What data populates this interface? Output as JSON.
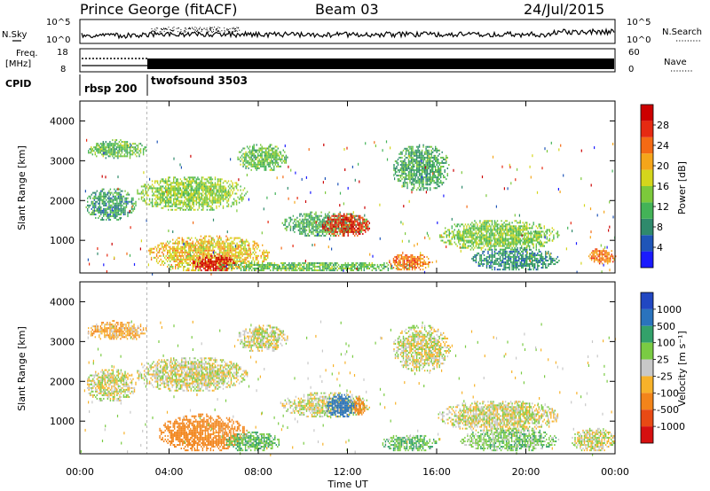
{
  "header": {
    "station": "Prince George (fitACF)",
    "beam": "Beam 03",
    "date": "24/Jul/2015"
  },
  "labels": {
    "nsky": "N.Sky",
    "nsearch": "N.Search",
    "freq": "Freq.",
    "mhz": "[MHz]",
    "nave": "Nave",
    "cpid": "CPID",
    "slant_range": "Slant Range [km]",
    "time_axis": "Time UT",
    "power_bar": "Power [dB]",
    "velocity_bar": "Velocity [m s⁻¹]"
  },
  "noise_axis": {
    "ticks": [
      "10^5",
      "10^0"
    ]
  },
  "freq_axis": {
    "left_ticks": [
      "18",
      "8"
    ],
    "right_ticks": [
      "60",
      "0"
    ]
  },
  "cpid_segments": [
    {
      "label": "rbsp 200",
      "start_hour": 0.0,
      "end_hour": 3.0
    },
    {
      "label": "twofsound 3503",
      "start_hour": 3.0,
      "end_hour": 24.0
    }
  ],
  "time_ticks": [
    "00:00",
    "04:00",
    "08:00",
    "12:00",
    "16:00",
    "20:00",
    "00:00"
  ],
  "range_ticks": [
    "1000",
    "2000",
    "3000",
    "4000"
  ],
  "power_scale": {
    "labels": [
      "4",
      "8",
      "12",
      "16",
      "20",
      "24",
      "28"
    ],
    "colors": [
      "#1a1aff",
      "#1f55b8",
      "#2f8a6c",
      "#43b357",
      "#7cc93b",
      "#d4d61c",
      "#f5a51a",
      "#f46a14",
      "#e62a12",
      "#cc0000"
    ]
  },
  "velocity_scale": {
    "labels": [
      "1000",
      "500",
      "100",
      "25",
      "-25",
      "-100",
      "-500",
      "-1000"
    ],
    "colors": [
      "#2147c2",
      "#2a73bd",
      "#33a16a",
      "#7acb43",
      "#c8c8c8",
      "#f7b22a",
      "#f2841a",
      "#e84a14",
      "#d61010"
    ]
  },
  "chart_data": {
    "type": "heatmap",
    "x": {
      "label": "Time UT",
      "range_hours": [
        0,
        24
      ]
    },
    "y": {
      "label": "Slant Range [km]",
      "range_km": [
        180,
        4500
      ]
    },
    "panels": [
      {
        "name": "Power [dB]",
        "scale": [
          0,
          30
        ],
        "regions": [
          {
            "t0": 0.3,
            "t1": 3.0,
            "r0": 3000,
            "r1": 3500,
            "value": 12
          },
          {
            "t0": 0.2,
            "t1": 2.5,
            "r0": 1450,
            "r1": 2300,
            "value": 9
          },
          {
            "t0": 2.5,
            "t1": 7.5,
            "r0": 1700,
            "r1": 2600,
            "value": 14
          },
          {
            "t0": 3.0,
            "t1": 8.5,
            "r0": 180,
            "r1": 1100,
            "value": 18
          },
          {
            "t0": 5.0,
            "t1": 7.0,
            "r0": 180,
            "r1": 600,
            "value": 28
          },
          {
            "t0": 7.0,
            "t1": 9.3,
            "r0": 2700,
            "r1": 3400,
            "value": 12
          },
          {
            "t0": 9.0,
            "t1": 13.0,
            "r0": 1050,
            "r1": 1700,
            "value": 10
          },
          {
            "t0": 10.8,
            "t1": 13.0,
            "r0": 1050,
            "r1": 1650,
            "value": 26
          },
          {
            "t0": 6.0,
            "t1": 15.0,
            "r0": 180,
            "r1": 450,
            "value": 12
          },
          {
            "t0": 13.8,
            "t1": 15.8,
            "r0": 200,
            "r1": 650,
            "value": 22
          },
          {
            "t0": 14.0,
            "t1": 16.6,
            "r0": 2200,
            "r1": 3400,
            "value": 10
          },
          {
            "t0": 16.0,
            "t1": 21.5,
            "r0": 700,
            "r1": 1500,
            "value": 13
          },
          {
            "t0": 17.5,
            "t1": 21.5,
            "r0": 200,
            "r1": 800,
            "value": 8
          },
          {
            "t0": 22.8,
            "t1": 24.0,
            "r0": 350,
            "r1": 800,
            "value": 22
          }
        ]
      },
      {
        "name": "Velocity [m s-1]",
        "scale": [
          -1000,
          1000
        ],
        "regions": [
          {
            "t0": 0.3,
            "t1": 3.0,
            "r0": 3000,
            "r1": 3500,
            "value": -80
          },
          {
            "t0": 0.2,
            "t1": 2.5,
            "r0": 1450,
            "r1": 2300,
            "value": 0
          },
          {
            "t0": 2.5,
            "t1": 7.5,
            "r0": 1700,
            "r1": 2600,
            "value": 0
          },
          {
            "t0": 3.5,
            "t1": 7.5,
            "r0": 200,
            "r1": 1150,
            "value": -300
          },
          {
            "t0": 6.5,
            "t1": 9.0,
            "r0": 200,
            "r1": 700,
            "value": 80
          },
          {
            "t0": 7.0,
            "t1": 9.3,
            "r0": 2700,
            "r1": 3400,
            "value": 0
          },
          {
            "t0": 9.0,
            "t1": 13.0,
            "r0": 1050,
            "r1": 1700,
            "value": 0
          },
          {
            "t0": 11.0,
            "t1": 12.4,
            "r0": 1050,
            "r1": 1650,
            "value": 600
          },
          {
            "t0": 12.2,
            "t1": 12.8,
            "r0": 1100,
            "r1": 1600,
            "value": -300
          },
          {
            "t0": 13.5,
            "t1": 16.0,
            "r0": 200,
            "r1": 650,
            "value": 80
          },
          {
            "t0": 14.0,
            "t1": 16.6,
            "r0": 2200,
            "r1": 3400,
            "value": 0
          },
          {
            "t0": 16.0,
            "t1": 21.5,
            "r0": 700,
            "r1": 1500,
            "value": 0
          },
          {
            "t0": 17.0,
            "t1": 21.5,
            "r0": 200,
            "r1": 800,
            "value": 60
          },
          {
            "t0": 22.0,
            "t1": 24.0,
            "r0": 200,
            "r1": 800,
            "value": 0
          }
        ]
      }
    ]
  }
}
